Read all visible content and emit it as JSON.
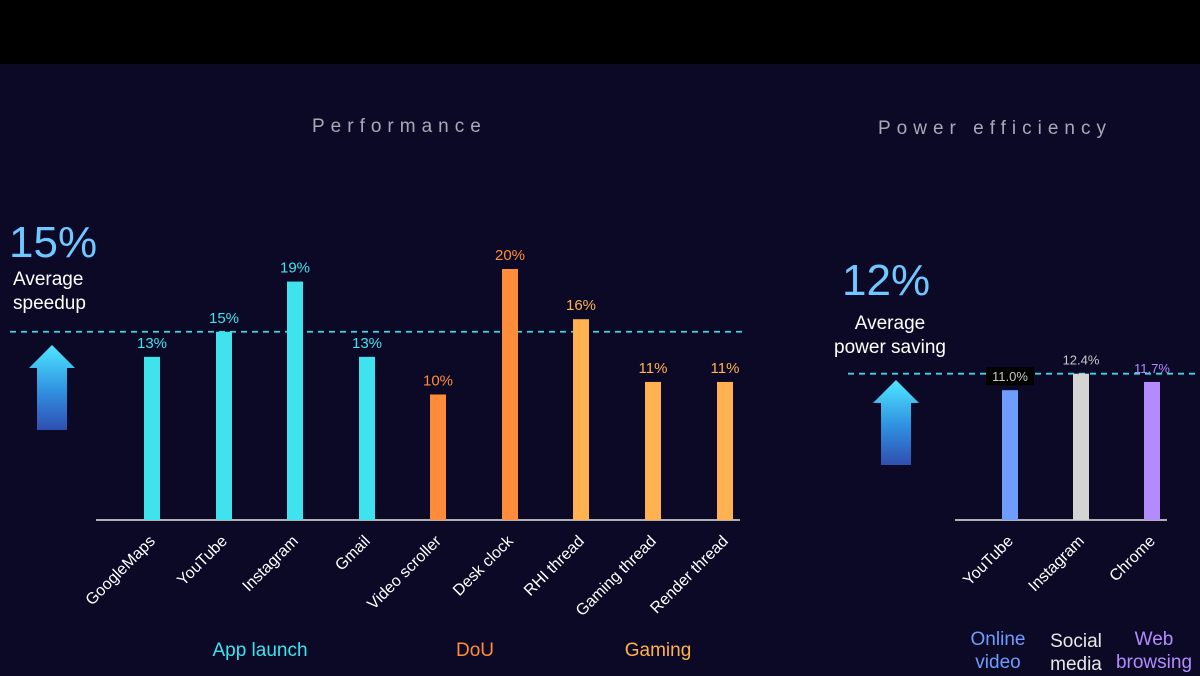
{
  "performance": {
    "title": "Performance",
    "headline_value": "15%",
    "headline_label_line1": "Average",
    "headline_label_line2": "speedup",
    "reference_line_value": 15,
    "groups": [
      {
        "label": "App launch",
        "color": "#3fe3ee"
      },
      {
        "label": "DoU",
        "color": "#ff8c3a"
      },
      {
        "label": "Gaming",
        "color": "#ffb24f"
      }
    ]
  },
  "power": {
    "title": "Power efficiency",
    "headline_value": "12%",
    "headline_label_line1": "Average",
    "headline_label_line2": "power saving",
    "reference_line_value": 12.4,
    "groups": [
      {
        "line1": "Online",
        "line2": "video",
        "color": "#6f9dff"
      },
      {
        "line1": "Social",
        "line2": "media",
        "color": "#e8e8e8"
      },
      {
        "line1": "Web",
        "line2": "browsing",
        "color": "#b38bff"
      }
    ]
  },
  "chart_data": [
    {
      "type": "bar",
      "title": "Performance",
      "categories": [
        "GoogleMaps",
        "YouTube",
        "Instagram",
        "Gmail",
        "Video scroller",
        "Desk clock",
        "RHI thread",
        "Gaming thread",
        "Render thread"
      ],
      "values": [
        13,
        15,
        19,
        13,
        10,
        20,
        16,
        11,
        11
      ],
      "labels": [
        "13%",
        "15%",
        "19%",
        "13%",
        "10%",
        "20%",
        "16%",
        "11%",
        "11%"
      ],
      "colors": [
        "#3fe3ee",
        "#3fe3ee",
        "#3fe3ee",
        "#3fe3ee",
        "#ff8c3a",
        "#ff8c3a",
        "#ffb24f",
        "#ffb24f",
        "#ffb24f"
      ],
      "ylim": [
        0,
        20
      ],
      "grid": false
    },
    {
      "type": "bar",
      "title": "Power efficiency",
      "categories": [
        "YouTube",
        "Instagram",
        "Chrome"
      ],
      "values": [
        11.0,
        12.4,
        11.7
      ],
      "labels": [
        "11.0%",
        "12.4%",
        "11.7%"
      ],
      "colors": [
        "#6f9dff",
        "#d4d4d4",
        "#b38bff"
      ],
      "ylim": [
        0,
        12.4
      ],
      "grid": false
    }
  ],
  "colors": {
    "background": "#0b0926",
    "reference_line": "#3fd6e0",
    "axis": "#b0b0b0",
    "headline": "#6fc8ff"
  }
}
